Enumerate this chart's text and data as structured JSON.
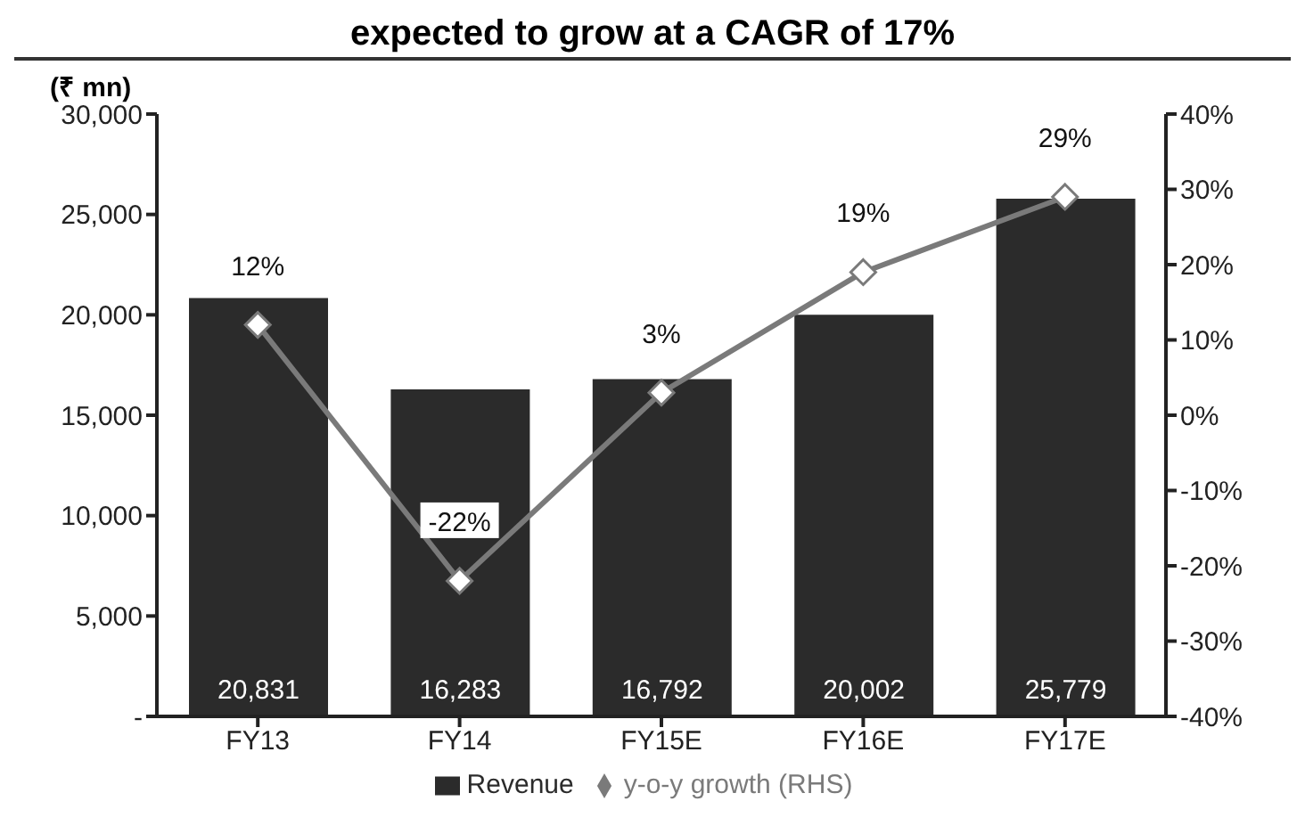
{
  "chart_data": {
    "type": "bar",
    "title": "expected to grow at a CAGR of 17%",
    "ylabel": "(₹ mn)",
    "categories": [
      "FY13",
      "FY14",
      "FY15E",
      "FY16E",
      "FY17E"
    ],
    "series": [
      {
        "name": "Revenue",
        "color": "#2b2b2b",
        "values": [
          20831,
          16283,
          16792,
          20002,
          25779
        ],
        "value_labels": [
          "20,831",
          "16,283",
          "16,792",
          "20,002",
          "25,779"
        ]
      },
      {
        "name": "y-o-y growth (RHS)",
        "type": "line",
        "axis": "y2",
        "color": "#7a7a7a",
        "marker": "diamond",
        "values": [
          12,
          -22,
          3,
          19,
          29
        ],
        "value_labels": [
          "12%",
          "-22%",
          "3%",
          "19%",
          "29%"
        ]
      }
    ],
    "ylim": [
      0,
      30000
    ],
    "yticks": [
      {
        "value": 0,
        "label": "-"
      },
      {
        "value": 5000,
        "label": "5,000"
      },
      {
        "value": 10000,
        "label": "10,000"
      },
      {
        "value": 15000,
        "label": "15,000"
      },
      {
        "value": 20000,
        "label": "20,000"
      },
      {
        "value": 25000,
        "label": "25,000"
      },
      {
        "value": 30000,
        "label": "30,000"
      }
    ],
    "y2lim": [
      -40,
      40
    ],
    "y2ticks": [
      {
        "value": -40,
        "label": "-40%"
      },
      {
        "value": -30,
        "label": "-30%"
      },
      {
        "value": -20,
        "label": "-20%"
      },
      {
        "value": -10,
        "label": "-10%"
      },
      {
        "value": 0,
        "label": "0%"
      },
      {
        "value": 10,
        "label": "10%"
      },
      {
        "value": 20,
        "label": "20%"
      },
      {
        "value": 30,
        "label": "30%"
      },
      {
        "value": 40,
        "label": "40%"
      }
    ],
    "grid": false,
    "legend": "bottom"
  }
}
